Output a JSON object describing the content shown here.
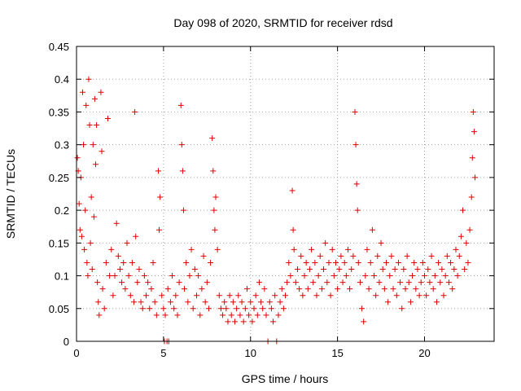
{
  "chart_data": {
    "type": "scatter",
    "title": "Day 098 of 2020, SRMTID for receiver rdsd",
    "xlabel": "GPS time / hours",
    "ylabel": "SRMTID / TECUs",
    "xlim": [
      0,
      24
    ],
    "ylim": [
      0,
      0.45
    ],
    "x_ticks": [
      0,
      5,
      10,
      15,
      20
    ],
    "x_tick_labels": [
      "0",
      "5",
      "10",
      "15",
      "20"
    ],
    "y_ticks": [
      0,
      0.05,
      0.1,
      0.15,
      0.2,
      0.25,
      0.3,
      0.35,
      0.4,
      0.45
    ],
    "y_tick_labels": [
      "0",
      "0.05",
      "0.1",
      "0.15",
      "0.2",
      "0.25",
      "0.3",
      "0.35",
      "0.4",
      "0.45"
    ],
    "grid": true,
    "marker": "+",
    "color": "#e00000",
    "series": [
      {
        "name": "SRMTID",
        "points": [
          [
            0.05,
            0.28
          ],
          [
            0.1,
            0.26
          ],
          [
            0.15,
            0.21
          ],
          [
            0.2,
            0.17
          ],
          [
            0.25,
            0.25
          ],
          [
            0.3,
            0.16
          ],
          [
            0.35,
            0.38
          ],
          [
            0.4,
            0.3
          ],
          [
            0.45,
            0.14
          ],
          [
            0.5,
            0.2
          ],
          [
            0.55,
            0.36
          ],
          [
            0.6,
            0.12
          ],
          [
            0.65,
            0.1
          ],
          [
            0.7,
            0.4
          ],
          [
            0.75,
            0.33
          ],
          [
            0.8,
            0.15
          ],
          [
            0.85,
            0.22
          ],
          [
            0.9,
            0.11
          ],
          [
            0.95,
            0.3
          ],
          [
            1.0,
            0.19
          ],
          [
            1.05,
            0.37
          ],
          [
            1.1,
            0.27
          ],
          [
            1.15,
            0.33
          ],
          [
            1.2,
            0.09
          ],
          [
            1.25,
            0.06
          ],
          [
            1.3,
            0.04
          ],
          [
            1.4,
            0.38
          ],
          [
            1.45,
            0.29
          ],
          [
            1.5,
            0.08
          ],
          [
            1.6,
            0.05
          ],
          [
            1.7,
            0.12
          ],
          [
            1.8,
            0.34
          ],
          [
            1.9,
            0.1
          ],
          [
            2.0,
            0.14
          ],
          [
            2.1,
            0.07
          ],
          [
            2.2,
            0.1
          ],
          [
            2.3,
            0.18
          ],
          [
            2.4,
            0.13
          ],
          [
            2.5,
            0.11
          ],
          [
            2.6,
            0.09
          ],
          [
            2.7,
            0.12
          ],
          [
            2.8,
            0.08
          ],
          [
            2.9,
            0.15
          ],
          [
            3.0,
            0.1
          ],
          [
            3.1,
            0.07
          ],
          [
            3.2,
            0.12
          ],
          [
            3.3,
            0.06
          ],
          [
            3.35,
            0.35
          ],
          [
            3.4,
            0.16
          ],
          [
            3.5,
            0.09
          ],
          [
            3.6,
            0.11
          ],
          [
            3.7,
            0.06
          ],
          [
            3.8,
            0.05
          ],
          [
            3.9,
            0.1
          ],
          [
            4.0,
            0.07
          ],
          [
            4.1,
            0.09
          ],
          [
            4.2,
            0.05
          ],
          [
            4.3,
            0.08
          ],
          [
            4.4,
            0.12
          ],
          [
            4.5,
            0.06
          ],
          [
            4.6,
            0.04
          ],
          [
            4.7,
            0.26
          ],
          [
            4.75,
            0.17
          ],
          [
            4.8,
            0.22
          ],
          [
            4.9,
            0.07
          ],
          [
            5.0,
            0.05
          ],
          [
            5.05,
            0.0
          ],
          [
            5.1,
            0.04
          ],
          [
            5.2,
            0.0
          ],
          [
            5.25,
            0.08
          ],
          [
            5.3,
            0.0
          ],
          [
            5.4,
            0.06
          ],
          [
            5.5,
            0.1
          ],
          [
            5.6,
            0.05
          ],
          [
            5.7,
            0.07
          ],
          [
            5.8,
            0.04
          ],
          [
            5.9,
            0.09
          ],
          [
            6.0,
            0.36
          ],
          [
            6.05,
            0.3
          ],
          [
            6.1,
            0.26
          ],
          [
            6.15,
            0.2
          ],
          [
            6.2,
            0.08
          ],
          [
            6.3,
            0.12
          ],
          [
            6.4,
            0.06
          ],
          [
            6.5,
            0.1
          ],
          [
            6.6,
            0.14
          ],
          [
            6.7,
            0.05
          ],
          [
            6.8,
            0.11
          ],
          [
            6.9,
            0.07
          ],
          [
            7.0,
            0.1
          ],
          [
            7.1,
            0.04
          ],
          [
            7.2,
            0.08
          ],
          [
            7.3,
            0.13
          ],
          [
            7.4,
            0.06
          ],
          [
            7.5,
            0.09
          ],
          [
            7.6,
            0.05
          ],
          [
            7.7,
            0.12
          ],
          [
            7.8,
            0.31
          ],
          [
            7.85,
            0.26
          ],
          [
            7.9,
            0.2
          ],
          [
            7.95,
            0.17
          ],
          [
            8.0,
            0.22
          ],
          [
            8.1,
            0.14
          ],
          [
            8.2,
            0.07
          ],
          [
            8.3,
            0.05
          ],
          [
            8.4,
            0.04
          ],
          [
            8.5,
            0.06
          ],
          [
            8.6,
            0.05
          ],
          [
            8.7,
            0.03
          ],
          [
            8.8,
            0.07
          ],
          [
            8.9,
            0.04
          ],
          [
            9.0,
            0.06
          ],
          [
            9.1,
            0.03
          ],
          [
            9.2,
            0.05
          ],
          [
            9.3,
            0.07
          ],
          [
            9.4,
            0.04
          ],
          [
            9.5,
            0.06
          ],
          [
            9.6,
            0.03
          ],
          [
            9.7,
            0.05
          ],
          [
            9.8,
            0.08
          ],
          [
            9.9,
            0.04
          ],
          [
            10.0,
            0.06
          ],
          [
            10.1,
            0.03
          ],
          [
            10.2,
            0.05
          ],
          [
            10.3,
            0.07
          ],
          [
            10.4,
            0.04
          ],
          [
            10.5,
            0.09
          ],
          [
            10.6,
            0.06
          ],
          [
            10.7,
            0.05
          ],
          [
            10.8,
            0.08
          ],
          [
            10.9,
            0.04
          ],
          [
            11.0,
            0.0
          ],
          [
            11.1,
            0.06
          ],
          [
            11.2,
            0.05
          ],
          [
            11.3,
            0.03
          ],
          [
            11.4,
            0.07
          ],
          [
            11.5,
            0.0
          ],
          [
            11.6,
            0.04
          ],
          [
            11.7,
            0.06
          ],
          [
            11.8,
            0.08
          ],
          [
            11.9,
            0.05
          ],
          [
            12.0,
            0.07
          ],
          [
            12.1,
            0.09
          ],
          [
            12.2,
            0.12
          ],
          [
            12.3,
            0.1
          ],
          [
            12.4,
            0.23
          ],
          [
            12.45,
            0.17
          ],
          [
            12.5,
            0.14
          ],
          [
            12.6,
            0.09
          ],
          [
            12.7,
            0.11
          ],
          [
            12.8,
            0.08
          ],
          [
            12.9,
            0.13
          ],
          [
            13.0,
            0.07
          ],
          [
            13.1,
            0.1
          ],
          [
            13.2,
            0.12
          ],
          [
            13.3,
            0.08
          ],
          [
            13.4,
            0.11
          ],
          [
            13.5,
            0.14
          ],
          [
            13.6,
            0.09
          ],
          [
            13.7,
            0.12
          ],
          [
            13.8,
            0.07
          ],
          [
            13.9,
            0.1
          ],
          [
            14.0,
            0.13
          ],
          [
            14.1,
            0.08
          ],
          [
            14.2,
            0.11
          ],
          [
            14.3,
            0.15
          ],
          [
            14.4,
            0.09
          ],
          [
            14.5,
            0.12
          ],
          [
            14.6,
            0.07
          ],
          [
            14.7,
            0.14
          ],
          [
            14.8,
            0.1
          ],
          [
            14.9,
            0.12
          ],
          [
            15.0,
            0.08
          ],
          [
            15.1,
            0.11
          ],
          [
            15.2,
            0.13
          ],
          [
            15.3,
            0.09
          ],
          [
            15.4,
            0.12
          ],
          [
            15.5,
            0.1
          ],
          [
            15.6,
            0.14
          ],
          [
            15.7,
            0.08
          ],
          [
            15.8,
            0.11
          ],
          [
            15.9,
            0.13
          ],
          [
            16.0,
            0.35
          ],
          [
            16.05,
            0.3
          ],
          [
            16.1,
            0.24
          ],
          [
            16.15,
            0.2
          ],
          [
            16.2,
            0.12
          ],
          [
            16.3,
            0.09
          ],
          [
            16.4,
            0.05
          ],
          [
            16.5,
            0.03
          ],
          [
            16.6,
            0.1
          ],
          [
            16.7,
            0.14
          ],
          [
            16.8,
            0.08
          ],
          [
            16.9,
            0.12
          ],
          [
            17.0,
            0.17
          ],
          [
            17.1,
            0.1
          ],
          [
            17.2,
            0.07
          ],
          [
            17.3,
            0.13
          ],
          [
            17.4,
            0.09
          ],
          [
            17.5,
            0.15
          ],
          [
            17.6,
            0.11
          ],
          [
            17.7,
            0.08
          ],
          [
            17.8,
            0.12
          ],
          [
            17.9,
            0.06
          ],
          [
            18.0,
            0.1
          ],
          [
            18.1,
            0.13
          ],
          [
            18.2,
            0.08
          ],
          [
            18.3,
            0.11
          ],
          [
            18.4,
            0.07
          ],
          [
            18.5,
            0.12
          ],
          [
            18.6,
            0.09
          ],
          [
            18.7,
            0.05
          ],
          [
            18.8,
            0.11
          ],
          [
            18.9,
            0.08
          ],
          [
            19.0,
            0.13
          ],
          [
            19.1,
            0.09
          ],
          [
            19.2,
            0.06
          ],
          [
            19.3,
            0.1
          ],
          [
            19.4,
            0.12
          ],
          [
            19.5,
            0.08
          ],
          [
            19.6,
            0.11
          ],
          [
            19.7,
            0.07
          ],
          [
            19.8,
            0.09
          ],
          [
            19.9,
            0.12
          ],
          [
            20.0,
            0.1
          ],
          [
            20.1,
            0.07
          ],
          [
            20.2,
            0.11
          ],
          [
            20.3,
            0.09
          ],
          [
            20.4,
            0.13
          ],
          [
            20.5,
            0.08
          ],
          [
            20.6,
            0.1
          ],
          [
            20.7,
            0.06
          ],
          [
            20.8,
            0.12
          ],
          [
            20.9,
            0.09
          ],
          [
            21.0,
            0.11
          ],
          [
            21.1,
            0.07
          ],
          [
            21.2,
            0.1
          ],
          [
            21.3,
            0.13
          ],
          [
            21.4,
            0.09
          ],
          [
            21.5,
            0.12
          ],
          [
            21.6,
            0.08
          ],
          [
            21.7,
            0.11
          ],
          [
            21.8,
            0.14
          ],
          [
            21.9,
            0.1
          ],
          [
            22.0,
            0.13
          ],
          [
            22.1,
            0.16
          ],
          [
            22.2,
            0.2
          ],
          [
            22.3,
            0.11
          ],
          [
            22.4,
            0.15
          ],
          [
            22.5,
            0.12
          ],
          [
            22.6,
            0.17
          ],
          [
            22.7,
            0.22
          ],
          [
            22.75,
            0.28
          ],
          [
            22.8,
            0.35
          ],
          [
            22.85,
            0.32
          ],
          [
            22.9,
            0.25
          ]
        ]
      }
    ]
  }
}
